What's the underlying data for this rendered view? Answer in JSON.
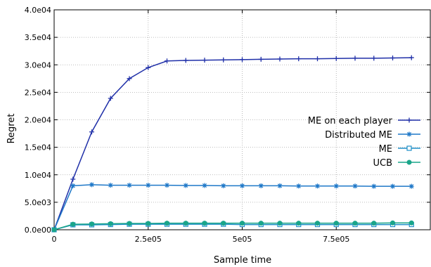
{
  "chart_data": {
    "type": "line",
    "title": "",
    "xlabel": "Sample time",
    "ylabel": "Regret",
    "xlim": [
      0,
      1000000
    ],
    "ylim": [
      0,
      40000
    ],
    "grid": true,
    "legend_position": "right",
    "x_ticks": [
      {
        "value": 0,
        "label": "0"
      },
      {
        "value": 250000,
        "label": "2.5e05"
      },
      {
        "value": 500000,
        "label": "5e05"
      },
      {
        "value": 750000,
        "label": "7.5e05"
      }
    ],
    "y_ticks": [
      {
        "value": 0,
        "label": "0.0e00"
      },
      {
        "value": 5000,
        "label": "5.0e03"
      },
      {
        "value": 10000,
        "label": "1.0e04"
      },
      {
        "value": 15000,
        "label": "1.5e04"
      },
      {
        "value": 20000,
        "label": "2.0e04"
      },
      {
        "value": 25000,
        "label": "2.5e04"
      },
      {
        "value": 30000,
        "label": "3.0e04"
      },
      {
        "value": 35000,
        "label": "3.5e04"
      },
      {
        "value": 40000,
        "label": "4.0e04"
      }
    ],
    "x": [
      0,
      50000,
      100000,
      150000,
      200000,
      250000,
      300000,
      350000,
      400000,
      450000,
      500000,
      550000,
      600000,
      650000,
      700000,
      750000,
      800000,
      850000,
      900000,
      950000
    ],
    "series": [
      {
        "name": "ME on each player",
        "color": "#1f2fa8",
        "marker": "plus",
        "values": [
          0,
          9200,
          17800,
          23900,
          27500,
          29500,
          30700,
          30800,
          30850,
          30900,
          30950,
          31000,
          31050,
          31100,
          31100,
          31150,
          31200,
          31200,
          31250,
          31300
        ]
      },
      {
        "name": "Distributed ME",
        "color": "#1f78c8",
        "marker": "star",
        "values": [
          0,
          8000,
          8200,
          8100,
          8100,
          8100,
          8100,
          8050,
          8050,
          8000,
          8000,
          8000,
          8000,
          7950,
          7950,
          7950,
          7950,
          7900,
          7900,
          7900
        ]
      },
      {
        "name": "ME",
        "color": "#1f8fc8",
        "marker": "square",
        "values": [
          0,
          900,
          900,
          950,
          1000,
          1000,
          1000,
          1000,
          1000,
          1000,
          950,
          950,
          950,
          950,
          950,
          950,
          950,
          950,
          950,
          950
        ]
      },
      {
        "name": "UCB",
        "color": "#1aa58a",
        "marker": "circle",
        "values": [
          0,
          1000,
          1050,
          1100,
          1150,
          1150,
          1200,
          1200,
          1200,
          1200,
          1200,
          1200,
          1200,
          1200,
          1200,
          1200,
          1200,
          1200,
          1250,
          1250
        ]
      }
    ]
  }
}
